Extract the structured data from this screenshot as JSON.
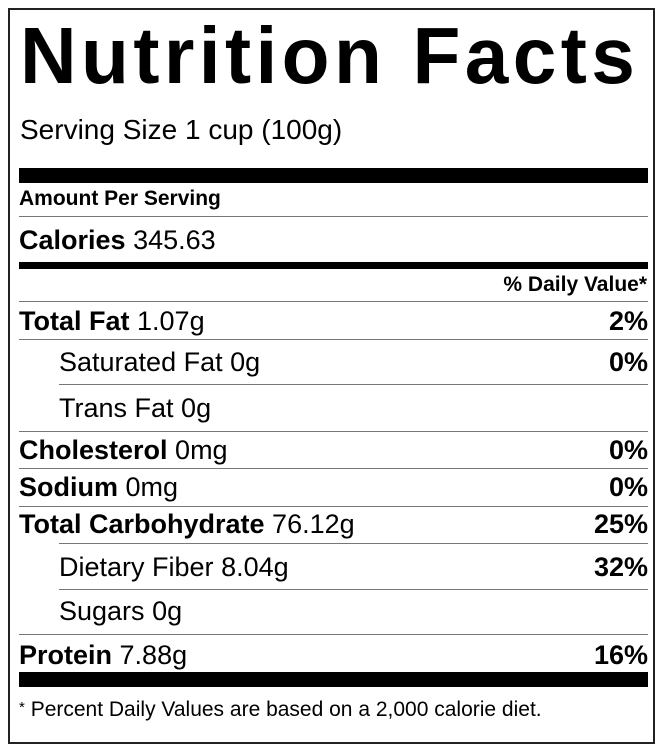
{
  "title": "Nutrition Facts",
  "serving_size": "Serving Size 1 cup (100g)",
  "amount_per_serving": "Amount Per Serving",
  "calories": {
    "label": "Calories",
    "value": "345.63"
  },
  "daily_value_header": "% Daily Value*",
  "nutrients": [
    {
      "label": "Total Fat",
      "amount": "1.07g",
      "dv": "2%",
      "bold": true
    },
    {
      "label": "Saturated Fat",
      "amount": "0g",
      "dv": "0%",
      "bold": false
    },
    {
      "label": "Trans Fat",
      "amount": "0g",
      "dv": "",
      "bold": false
    },
    {
      "label": "Cholesterol",
      "amount": "0mg",
      "dv": "0%",
      "bold": true
    },
    {
      "label": "Sodium",
      "amount": "0mg",
      "dv": "0%",
      "bold": true
    },
    {
      "label": "Total Carbohydrate",
      "amount": "76.12g",
      "dv": "25%",
      "bold": true
    },
    {
      "label": "Dietary Fiber",
      "amount": "8.04g",
      "dv": "32%",
      "bold": false
    },
    {
      "label": "Sugars",
      "amount": "0g",
      "dv": "",
      "bold": false
    },
    {
      "label": "Protein",
      "amount": "7.88g",
      "dv": "16%",
      "bold": true
    }
  ],
  "footnote_mark": "*",
  "footnote": "Percent Daily Values are based on a 2,000 calorie diet."
}
